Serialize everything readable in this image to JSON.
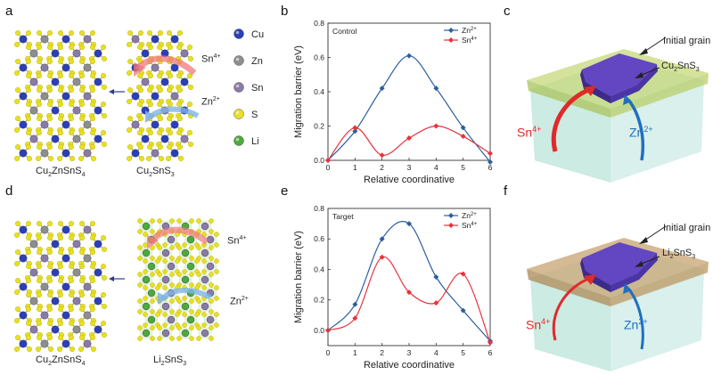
{
  "panels": {
    "a": "a",
    "b": "b",
    "c": "c",
    "d": "d",
    "e": "e",
    "f": "f"
  },
  "structures": {
    "top_left": {
      "base": "Cu",
      "sub1": "2",
      "mid": "ZnSnS",
      "sub2": "4"
    },
    "top_right": {
      "base": "Cu",
      "sub1": "2",
      "mid": "SnS",
      "sub2": "3"
    },
    "bottom_left": {
      "base": "Cu",
      "sub1": "2",
      "mid": "ZnSnS",
      "sub2": "4"
    },
    "bottom_right": {
      "base": "Li",
      "sub1": "2",
      "mid": "SnS",
      "sub2": "3"
    },
    "ion_sn": {
      "base": "Sn",
      "sup": "4+"
    },
    "ion_zn": {
      "base": "Zn",
      "sup": "2+"
    }
  },
  "atom_legend": [
    {
      "label": "Cu",
      "color": "#2a3fb8"
    },
    {
      "label": "Zn",
      "color": "#8e8e8e"
    },
    {
      "label": "Sn",
      "color": "#8a7aa6"
    },
    {
      "label": "S",
      "color": "#e8e020"
    },
    {
      "label": "Li",
      "color": "#4caa3c"
    }
  ],
  "grain_c": {
    "initial_grain": "Initial grain",
    "shell": {
      "base": "Cu",
      "sub1": "2",
      "mid": "SnS",
      "sub2": "3"
    },
    "sn": {
      "base": "Sn",
      "sup": "4+"
    },
    "zn": {
      "base": "Zn",
      "sup": "2+"
    }
  },
  "grain_f": {
    "initial_grain": "Initial grain",
    "shell": {
      "base": "Li",
      "sub1": "2",
      "mid": "SnS",
      "sub2": "3"
    },
    "sn": {
      "base": "Sn",
      "sup": "4+"
    },
    "zn": {
      "base": "Zn",
      "sup": "2+"
    }
  },
  "chart_data": [
    {
      "type": "line",
      "annotation": "Control",
      "xlabel": "Relative coordinative",
      "ylabel": "Migration barrier (eV)",
      "xlim": [
        0,
        6
      ],
      "ylim": [
        0,
        0.8
      ],
      "x_ticks": [
        0,
        1,
        2,
        3,
        4,
        5,
        6
      ],
      "y_ticks": [
        0.0,
        0.2,
        0.4,
        0.6,
        0.8
      ],
      "x": [
        0,
        1,
        2,
        3,
        4,
        5,
        6
      ],
      "series": [
        {
          "name": "Zn2+",
          "label_base": "Zn",
          "label_sup": "2+",
          "color": "#2b5f9e",
          "marker": "diamond",
          "values": [
            0.0,
            0.17,
            0.42,
            0.61,
            0.42,
            0.19,
            -0.01
          ]
        },
        {
          "name": "Sn4+",
          "label_base": "Sn",
          "label_sup": "4+",
          "color": "#e8323c",
          "marker": "diamond",
          "values": [
            0.0,
            0.19,
            0.03,
            0.13,
            0.2,
            0.14,
            0.04
          ]
        }
      ],
      "legend": "top-right"
    },
    {
      "type": "line",
      "annotation": "Target",
      "xlabel": "Relative coordinative",
      "ylabel": "Migration barrier (eV)",
      "xlim": [
        0,
        6
      ],
      "ylim": [
        -0.1,
        0.8
      ],
      "x_ticks": [
        0,
        1,
        2,
        3,
        4,
        5,
        6
      ],
      "y_ticks": [
        0.0,
        0.2,
        0.4,
        0.6,
        0.8
      ],
      "x": [
        0,
        1,
        2,
        3,
        4,
        5,
        6
      ],
      "series": [
        {
          "name": "Zn2+",
          "label_base": "Zn",
          "label_sup": "2+",
          "color": "#2b5f9e",
          "marker": "diamond",
          "values": [
            0.0,
            0.17,
            0.6,
            0.7,
            0.35,
            0.13,
            -0.07
          ]
        },
        {
          "name": "Sn4+",
          "label_base": "Sn",
          "label_sup": "4+",
          "color": "#e8323c",
          "marker": "diamond",
          "values": [
            0.0,
            0.08,
            0.48,
            0.25,
            0.18,
            0.37,
            -0.08
          ]
        }
      ],
      "legend": "top-right"
    }
  ]
}
